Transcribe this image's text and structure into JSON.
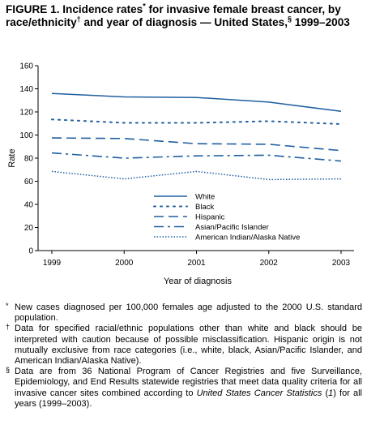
{
  "title": {
    "part1": "FIGURE 1. Incidence rates",
    "star": "*",
    "part2": " for invasive female breast cancer, by race/ethnicity",
    "dagger": "†",
    "part3": " and year of diagnosis — United States,",
    "section": "§",
    "part4": " 1999–2003"
  },
  "chart_data": {
    "type": "line",
    "x": [
      1999,
      2000,
      2001,
      2002,
      2003
    ],
    "xlabel": "Year of diagnosis",
    "ylabel": "Rate",
    "ylim": [
      0,
      160
    ],
    "yticks": [
      0,
      20,
      40,
      60,
      80,
      100,
      120,
      140,
      160
    ],
    "grid": false,
    "legend_position": "lower-center",
    "series": [
      {
        "name": "White",
        "values": [
          136,
          133,
          132.5,
          128.5,
          120.5
        ],
        "color": "#1f5fa0",
        "style": "solid"
      },
      {
        "name": "Black",
        "values": [
          113.5,
          110.5,
          110.5,
          112,
          109.5
        ],
        "color": "#1f5fa0",
        "style": "dotted"
      },
      {
        "name": "Hispanic",
        "values": [
          97.5,
          97,
          92.5,
          92,
          86.5
        ],
        "color": "#1f5fa0",
        "style": "dashed"
      },
      {
        "name": "Asian/Pacific Islander",
        "values": [
          84.5,
          80,
          82,
          82.5,
          77.5
        ],
        "color": "#1f5fa0",
        "style": "dashdot"
      },
      {
        "name": "American Indian/Alaska Native",
        "values": [
          68.5,
          62,
          68.5,
          61.5,
          62
        ],
        "color": "#1f5fa0",
        "style": "finedot"
      }
    ]
  },
  "footnotes": [
    {
      "mark": "*",
      "text": "New cases diagnosed per 100,000 females age adjusted to the 2000 U.S. standard population."
    },
    {
      "mark": "†",
      "text": "Data for specified racial/ethnic populations other than white and black should be interpreted with caution because of possible misclassification. Hispanic origin is not mutually exclusive from race categories (i.e., white, black, Asian/Pacific Islander, and American Indian/Alaska Native)."
    },
    {
      "mark": "§",
      "text_before": "Data are from 36 National Program of Cancer Registries and five Surveillance, Epidemiology, and End Results statewide registries that meet data quality criteria for all invasive cancer sites combined according to ",
      "ref": "United States Cancer Statistics",
      "text_paren_open": " (",
      "ref_num": "1",
      "text_after": ") for all years (1999–2003)."
    }
  ]
}
